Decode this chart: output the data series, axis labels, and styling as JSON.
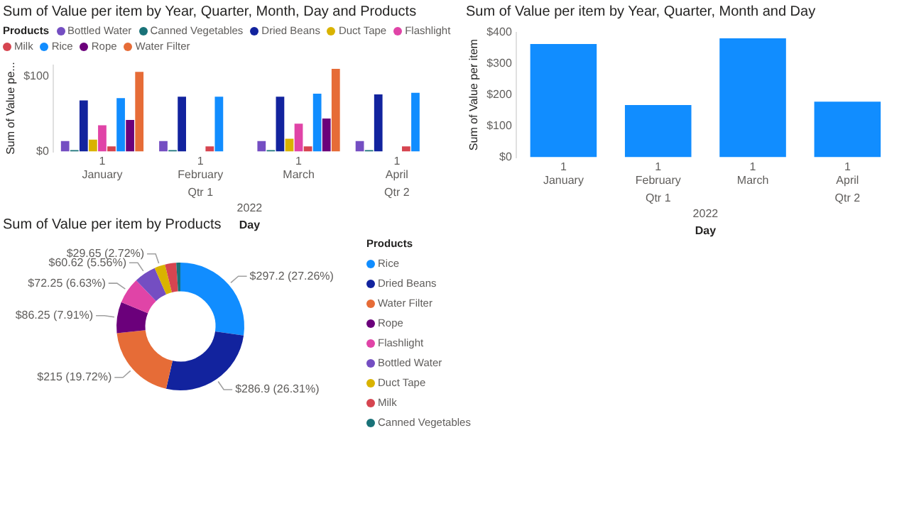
{
  "chart_data": [
    {
      "type": "bar",
      "title": "Sum of Value per item by Year, Quarter, Month, Day and Products",
      "xlabel": "Day",
      "ylabel": "Sum of Value pe...",
      "legend_title": "Products",
      "legend": "top left",
      "categories": [
        "1\nJanuary",
        "1\nFebruary",
        "1\nMarch",
        "1\nApril"
      ],
      "series": [
        {
          "name": "Bottled Water",
          "color": "#744ec2",
          "values": [
            14,
            14,
            14,
            14
          ]
        },
        {
          "name": "Canned Vegetables",
          "color": "#197278",
          "values": [
            2,
            2,
            2,
            2
          ]
        },
        {
          "name": "Dried Beans",
          "color": "#12239e",
          "values": [
            68,
            73,
            73,
            76
          ]
        },
        {
          "name": "Duct Tape",
          "color": "#d9b300",
          "values": [
            16,
            null,
            17,
            null
          ]
        },
        {
          "name": "Flashlight",
          "color": "#e044a7",
          "values": [
            35,
            null,
            37,
            null
          ]
        },
        {
          "name": "Milk",
          "color": "#d64550",
          "values": [
            7,
            7,
            7,
            7
          ]
        },
        {
          "name": "Rice",
          "color": "#118dff",
          "values": [
            71,
            73,
            77,
            78
          ]
        },
        {
          "name": "Rope",
          "color": "#6b007b",
          "values": [
            42,
            null,
            44,
            null
          ]
        },
        {
          "name": "Water Filter",
          "color": "#e66c37",
          "values": [
            106,
            null,
            110,
            null
          ]
        }
      ],
      "ylim": [
        0,
        115
      ],
      "yticks": [
        {
          "value": 0,
          "label": "$0"
        },
        {
          "value": 100,
          "label": "$100"
        }
      ],
      "annotations": [
        "Qtr 1",
        "Qtr 2",
        "2022"
      ]
    },
    {
      "type": "bar",
      "title": "Sum of Value per item by Year, Quarter, Month and Day",
      "xlabel": "Day",
      "ylabel": "Sum of Value per item",
      "categories": [
        "1\nJanuary",
        "1\nFebruary",
        "1\nMarch",
        "1\nApril"
      ],
      "values": [
        363,
        167,
        381,
        178
      ],
      "color": "#118dff",
      "ylim": [
        0,
        400
      ],
      "yticks": [
        {
          "value": 0,
          "label": "$0"
        },
        {
          "value": 100,
          "label": "$100"
        },
        {
          "value": 200,
          "label": "$200"
        },
        {
          "value": 300,
          "label": "$300"
        },
        {
          "value": 400,
          "label": "$400"
        }
      ],
      "annotations": [
        "Qtr 1",
        "Qtr 2",
        "2022"
      ]
    },
    {
      "type": "donut",
      "title": "Sum of Value per item by Products",
      "legend_title": "Products",
      "legend": "right",
      "categories": [
        "Rice",
        "Dried Beans",
        "Water Filter",
        "Rope",
        "Flashlight",
        "Bottled Water",
        "Duct Tape",
        "Milk",
        "Canned Vegetables"
      ],
      "values": [
        297.2,
        286.9,
        215,
        86.25,
        72.25,
        60.62,
        29.65,
        31,
        11.3
      ],
      "colors": [
        "#118dff",
        "#12239e",
        "#e66c37",
        "#6b007b",
        "#e044a7",
        "#744ec2",
        "#d9b300",
        "#d64550",
        "#197278"
      ],
      "value_labels": [
        "$297.2 (27.26%)",
        "$286.9 (26.31%)",
        "$215 (19.72%)",
        "$86.25 (7.91%)",
        "$72.25 (6.63%)",
        "$60.62 (5.56%)",
        "$29.65 (2.72%)",
        null,
        null
      ]
    }
  ]
}
